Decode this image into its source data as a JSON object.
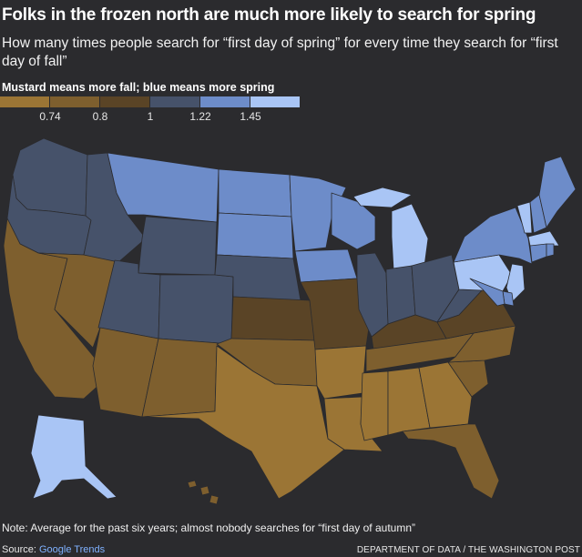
{
  "title": "Folks in the frozen north are much more likely to search for spring",
  "subtitle": "How many times people search for “first day of spring” for every time they search for “first day of fall”",
  "legend": {
    "title": "Mustard means more fall; blue means more spring",
    "ticks": [
      "0.74",
      "0.8",
      "1",
      "1.22",
      "1.45"
    ],
    "colors": [
      "#9b7535",
      "#7e5f2e",
      "#5a4426",
      "#46526a",
      "#6d8cc9",
      "#a9c5f5"
    ]
  },
  "colors": {
    "background": "#2b2b2e",
    "link": "#7fb1ff"
  },
  "map_data": {
    "measure": "spring searches per fall search",
    "states": {
      "WA": 3,
      "OR": 3,
      "CA": 1,
      "NV": 1,
      "ID": 3,
      "MT": 4,
      "WY": 3,
      "UT": 3,
      "AZ": 1,
      "CO": 3,
      "NM": 1,
      "ND": 4,
      "SD": 4,
      "NE": 3,
      "KS": 2,
      "OK": 1,
      "TX": 0,
      "MN": 4,
      "IA": 4,
      "MO": 2,
      "AR": 0,
      "LA": 0,
      "WI": 4,
      "IL": 3,
      "MI": 5,
      "IN": 3,
      "OH": 3,
      "KY": 2,
      "TN": 1,
      "MS": 0,
      "AL": 0,
      "GA": 0,
      "FL": 1,
      "SC": 1,
      "NC": 1,
      "VA": 2,
      "WV": 3,
      "PA": 5,
      "NY": 4,
      "NJ": 5,
      "DE": 4,
      "MD": 4,
      "VT": 5,
      "NH": 4,
      "ME": 4,
      "MA": 5,
      "CT": 4,
      "RI": 4,
      "AK": 5,
      "HI": 1
    }
  },
  "note": "Note: Average for the past six years; almost nobody searches for “first day of autumn”",
  "source": {
    "label": "Source: ",
    "link_text": "Google Trends"
  },
  "credit": "DEPARTMENT OF DATA / THE WASHINGTON POST"
}
